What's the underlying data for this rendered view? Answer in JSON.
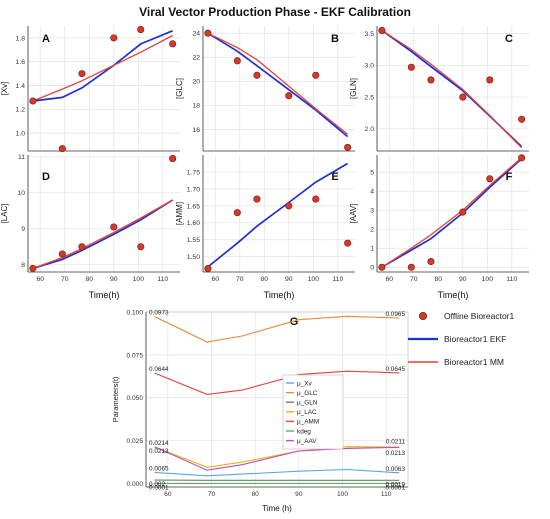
{
  "title": "Viral Vector Production Phase - EKF Calibration",
  "colors": {
    "ekf": "#1f2fd6",
    "mm": "#e2433a",
    "offline_fill": "#d23b2b",
    "offline_stroke": "#8a1a10",
    "grid": "#e2e2e2",
    "axis": "#333333"
  },
  "legend_main": {
    "offline": "Offline Bioreactor1",
    "ekf": "Bioreactor1 EKF",
    "mm": "Bioreactor1 MM"
  },
  "chart_data": [
    {
      "id": "A",
      "type": "line",
      "panel_label": "A",
      "ylabel": "[Xv]",
      "xlabel": "",
      "xlim": [
        55,
        117
      ],
      "ylim": [
        0.85,
        1.9
      ],
      "xticks": [
        60,
        70,
        80,
        90,
        100,
        110
      ],
      "yticks": [
        1.0,
        1.2,
        1.4,
        1.6,
        1.8
      ],
      "ytick_labels": [
        "1.0",
        "1.2",
        "1.4",
        "1.6",
        "1.8"
      ],
      "series": [
        {
          "name": "Offline Bioreactor1",
          "kind": "points",
          "x": [
            57,
            69,
            77,
            90,
            101,
            114
          ],
          "y": [
            1.27,
            0.87,
            1.5,
            1.8,
            1.87,
            1.75
          ]
        },
        {
          "name": "Bioreactor1 EKF",
          "kind": "line",
          "color": "ekf",
          "x": [
            57,
            69,
            77,
            90,
            101,
            114
          ],
          "y": [
            1.27,
            1.3,
            1.38,
            1.57,
            1.75,
            1.86
          ]
        },
        {
          "name": "Bioreactor1 MM",
          "kind": "line",
          "color": "mm",
          "x": [
            57,
            69,
            77,
            90,
            101,
            114
          ],
          "y": [
            1.27,
            1.37,
            1.44,
            1.57,
            1.68,
            1.82
          ]
        }
      ]
    },
    {
      "id": "B",
      "type": "line",
      "panel_label": "B",
      "ylabel": "[GLC]",
      "xlabel": "",
      "xlim": [
        55,
        117
      ],
      "ylim": [
        14.2,
        24.6
      ],
      "xticks": [
        60,
        70,
        80,
        90,
        100,
        110
      ],
      "yticks": [
        16,
        18,
        20,
        22,
        24
      ],
      "ytick_labels": [
        "16",
        "18",
        "20",
        "22",
        "24"
      ],
      "series": [
        {
          "name": "Offline Bioreactor1",
          "kind": "points",
          "x": [
            57,
            69,
            77,
            90,
            101,
            114
          ],
          "y": [
            24.0,
            21.7,
            20.5,
            18.8,
            20.5,
            14.5
          ]
        },
        {
          "name": "Bioreactor1 EKF",
          "kind": "line",
          "color": "ekf",
          "x": [
            57,
            69,
            77,
            90,
            101,
            114
          ],
          "y": [
            24.0,
            22.5,
            21.3,
            19.3,
            17.6,
            15.4
          ]
        },
        {
          "name": "Bioreactor1 MM",
          "kind": "line",
          "color": "mm",
          "x": [
            57,
            69,
            77,
            90,
            101,
            114
          ],
          "y": [
            24.0,
            22.8,
            21.8,
            19.6,
            17.7,
            15.6
          ]
        }
      ]
    },
    {
      "id": "C",
      "type": "line",
      "panel_label": "C",
      "ylabel": "[GLN]",
      "xlabel": "",
      "xlim": [
        55,
        117
      ],
      "ylim": [
        1.65,
        3.62
      ],
      "xticks": [
        60,
        70,
        80,
        90,
        100,
        110
      ],
      "yticks": [
        2.0,
        2.5,
        3.0,
        3.5
      ],
      "ytick_labels": [
        "2.0",
        "2.5",
        "3.0",
        "3.5"
      ],
      "series": [
        {
          "name": "Offline Bioreactor1",
          "kind": "points",
          "x": [
            57,
            69,
            77,
            90,
            101,
            114
          ],
          "y": [
            3.55,
            2.97,
            2.77,
            2.5,
            2.77,
            2.15
          ]
        },
        {
          "name": "Bioreactor1 EKF",
          "kind": "line",
          "color": "ekf",
          "x": [
            57,
            69,
            77,
            90,
            101,
            114
          ],
          "y": [
            3.55,
            3.22,
            2.98,
            2.6,
            2.2,
            1.72
          ]
        },
        {
          "name": "Bioreactor1 MM",
          "kind": "line",
          "color": "mm",
          "x": [
            57,
            69,
            77,
            90,
            101,
            114
          ],
          "y": [
            3.55,
            3.25,
            3.02,
            2.62,
            2.21,
            1.7
          ]
        }
      ]
    },
    {
      "id": "D",
      "type": "line",
      "panel_label": "D",
      "ylabel": "[LAC]",
      "xlabel": "Time(h)",
      "xlim": [
        55,
        117
      ],
      "ylim": [
        7.8,
        11.05
      ],
      "xticks": [
        60,
        70,
        80,
        90,
        100,
        110
      ],
      "yticks": [
        8,
        9,
        10,
        11
      ],
      "ytick_labels": [
        "8",
        "9",
        "10",
        "11"
      ],
      "series": [
        {
          "name": "Offline Bioreactor1",
          "kind": "points",
          "x": [
            57,
            69,
            77,
            90,
            101,
            114
          ],
          "y": [
            7.9,
            8.3,
            8.5,
            9.05,
            8.5,
            10.95
          ]
        },
        {
          "name": "Bioreactor1 EKF",
          "kind": "line",
          "color": "ekf",
          "x": [
            57,
            69,
            77,
            90,
            101,
            114
          ],
          "y": [
            7.9,
            8.15,
            8.4,
            8.85,
            9.25,
            9.8
          ]
        },
        {
          "name": "Bioreactor1 MM",
          "kind": "line",
          "color": "mm",
          "x": [
            57,
            69,
            77,
            90,
            101,
            114
          ],
          "y": [
            7.9,
            8.2,
            8.45,
            8.9,
            9.3,
            9.8
          ]
        }
      ]
    },
    {
      "id": "E",
      "type": "line",
      "panel_label": "E",
      "ylabel": "[AMM]",
      "xlabel": "Time(h)",
      "xlim": [
        55,
        117
      ],
      "ylim": [
        1.455,
        1.8
      ],
      "xticks": [
        60,
        70,
        80,
        90,
        100,
        110
      ],
      "yticks": [
        1.5,
        1.55,
        1.6,
        1.65,
        1.7,
        1.75
      ],
      "ytick_labels": [
        "1.50",
        "1.55",
        "1.60",
        "1.65",
        "1.70",
        "1.75"
      ],
      "series": [
        {
          "name": "Offline Bioreactor1",
          "kind": "points",
          "x": [
            57,
            69,
            77,
            90,
            101,
            114
          ],
          "y": [
            1.465,
            1.63,
            1.67,
            1.65,
            1.67,
            1.54
          ]
        },
        {
          "name": "Bioreactor1 EKF",
          "kind": "line",
          "color": "ekf",
          "x": [
            57,
            69,
            77,
            90,
            101,
            114
          ],
          "y": [
            1.47,
            1.54,
            1.59,
            1.66,
            1.72,
            1.775
          ]
        }
      ]
    },
    {
      "id": "F",
      "type": "line",
      "panel_label": "F",
      "ylabel": "[AAV]",
      "xlabel": "Time(h)",
      "xlim": [
        55,
        117
      ],
      "ylim": [
        -0.25,
        5.9
      ],
      "xticks": [
        60,
        70,
        80,
        90,
        100,
        110
      ],
      "yticks": [
        0,
        1,
        2,
        3,
        4,
        5
      ],
      "ytick_labels": [
        "0",
        "1",
        "2",
        "3",
        "4",
        "5"
      ],
      "series": [
        {
          "name": "Offline Bioreactor1",
          "kind": "points",
          "x": [
            57,
            69,
            77,
            90,
            101,
            114
          ],
          "y": [
            0.0,
            0.0,
            0.3,
            2.9,
            4.65,
            5.75
          ]
        },
        {
          "name": "Bioreactor1 EKF",
          "kind": "line",
          "color": "ekf",
          "x": [
            57,
            69,
            77,
            90,
            101,
            114
          ],
          "y": [
            0.0,
            0.9,
            1.5,
            2.85,
            4.2,
            5.7
          ]
        },
        {
          "name": "Bioreactor1 MM",
          "kind": "line",
          "color": "mm",
          "x": [
            57,
            69,
            77,
            90,
            101,
            114
          ],
          "y": [
            0.0,
            1.0,
            1.7,
            3.0,
            4.3,
            5.75
          ]
        }
      ]
    },
    {
      "id": "G",
      "type": "line",
      "panel_label": "G",
      "ylabel": "Parameters(t)",
      "xlabel": "Time (h)",
      "xlim": [
        55,
        115
      ],
      "ylim": [
        -0.002,
        0.1
      ],
      "xticks": [
        60,
        70,
        80,
        90,
        100,
        110
      ],
      "yticks": [
        0.0,
        0.025,
        0.05,
        0.075,
        0.1
      ],
      "ytick_labels": [
        "0.000",
        "0.025",
        "0.050",
        "0.075",
        "0.100"
      ],
      "legend_position": "center",
      "series": [
        {
          "name": "μ_Xv",
          "color": "#5aa6e0",
          "x": [
            57,
            69,
            77,
            90,
            101,
            113
          ],
          "y": [
            0.0065,
            0.0045,
            0.0055,
            0.0072,
            0.0082,
            0.0063
          ],
          "start_label": "0.0065",
          "end_label": "0.0063"
        },
        {
          "name": "μ_GLC",
          "color": "#e9893c",
          "x": [
            57,
            69,
            77,
            90,
            101,
            113
          ],
          "y": [
            0.0973,
            0.0825,
            0.086,
            0.0955,
            0.0975,
            0.0965
          ],
          "start_label": "0.0973",
          "end_label": "0.0965"
        },
        {
          "name": "μ_GLN",
          "color": "#7a7a7a",
          "x": [
            57,
            69,
            77,
            90,
            101,
            113
          ],
          "y": [
            0.002,
            0.0019,
            0.0019,
            0.0019,
            0.0019,
            0.0019
          ],
          "start_label": "0.002",
          "end_label": "0.0019"
        },
        {
          "name": "μ_LAC",
          "color": "#e7b416",
          "x": [
            57,
            69,
            77,
            90,
            101,
            113
          ],
          "y": [
            0.0213,
            0.0095,
            0.0125,
            0.019,
            0.0215,
            0.0213
          ],
          "start_label": "0.0213",
          "end_label": "0.0213"
        },
        {
          "name": "μ_AMM",
          "color": "#e2433a",
          "x": [
            57,
            69,
            77,
            90,
            101,
            113
          ],
          "y": [
            0.0644,
            0.052,
            0.0545,
            0.0635,
            0.0655,
            0.0645
          ],
          "start_label": "0.0644",
          "end_label": "0.0645"
        },
        {
          "name": "kdeg",
          "color": "#4fb35a",
          "x": [
            57,
            69,
            77,
            90,
            101,
            113
          ],
          "y": [
            0.0001,
            0.0001,
            0.0001,
            0.0001,
            0.0001,
            0.0001
          ],
          "start_label": "0.0001",
          "end_label": "0.0001"
        },
        {
          "name": "μ_AAV",
          "color": "#b84fc9",
          "x": [
            57,
            69,
            77,
            90,
            101,
            113
          ],
          "y": [
            0.0214,
            0.0078,
            0.011,
            0.019,
            0.0205,
            0.0211
          ],
          "start_label": "0.0214",
          "end_label": "0.0211"
        }
      ]
    }
  ]
}
